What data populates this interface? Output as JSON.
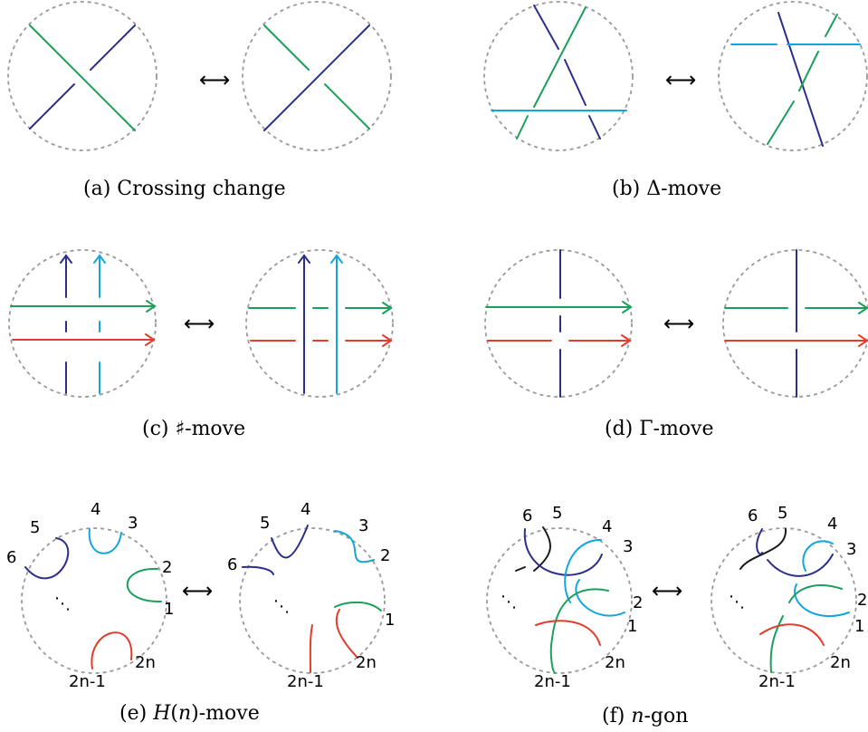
{
  "arrow_symbol": "⟷",
  "ellipsis_symbol": "⋱",
  "colors": {
    "dark_blue": "#2b2f8a",
    "green": "#1aa05a",
    "cyan": "#13a6dc",
    "red": "#e23c2c",
    "black": "#1a1a1a",
    "disk_border": "#9a9a9a"
  },
  "panels": {
    "a": {
      "caption": "(a) Crossing change"
    },
    "b": {
      "caption_prefix": "(b) ",
      "caption_symbol": "Δ",
      "caption_suffix": "-move"
    },
    "c": {
      "caption_prefix": "(c) ",
      "caption_symbol": "♯",
      "caption_suffix": "-move"
    },
    "d": {
      "caption_prefix": "(d) ",
      "caption_symbol": "Γ",
      "caption_suffix": "-move"
    },
    "e": {
      "caption_prefix": "(e) ",
      "caption_math": "H",
      "caption_paren_open": "(",
      "caption_math_arg": "n",
      "caption_paren_close": ")",
      "caption_suffix": "-move",
      "endpoint_labels": [
        "1",
        "2",
        "3",
        "4",
        "5",
        "6",
        "2n-1",
        "2n"
      ]
    },
    "f": {
      "caption_prefix": "(f) ",
      "caption_math": "n",
      "caption_suffix": "-gon",
      "endpoint_labels": [
        "1",
        "2",
        "3",
        "4",
        "5",
        "6",
        "2n-1",
        "2n"
      ]
    }
  }
}
